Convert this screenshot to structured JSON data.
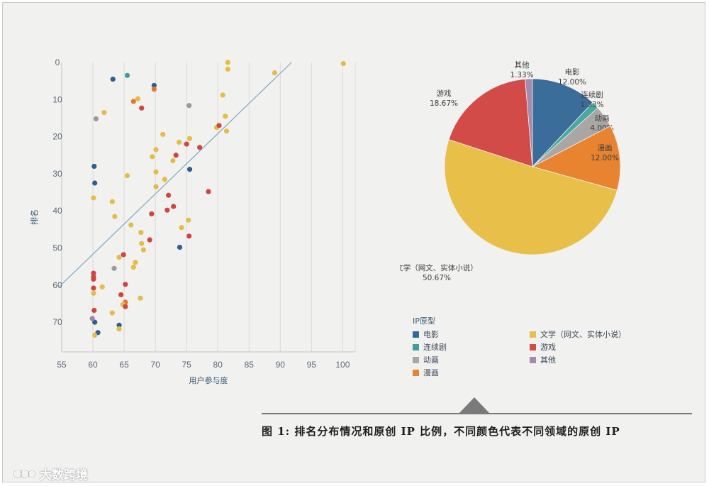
{
  "chart_data": [
    {
      "type": "scatter",
      "xlabel": "用户参与度",
      "ylabel": "排名",
      "xlim": [
        55,
        102
      ],
      "ylim": [
        0,
        78
      ],
      "y_inverted": true,
      "x_ticks": [
        55,
        60,
        65,
        70,
        75,
        80,
        85,
        90,
        95,
        100
      ],
      "y_ticks": [
        0,
        10,
        20,
        30,
        40,
        50,
        60,
        70
      ],
      "grid": true,
      "trendline": {
        "x": [
          54.5,
          91.8
        ],
        "y": [
          60.6,
          0
        ]
      },
      "series": [
        {
          "name": "电影",
          "color": "#2f5f8e",
          "points": [
            [
              63.2,
              4.5
            ],
            [
              69.8,
              6.2
            ],
            [
              60.2,
              28
            ],
            [
              60.3,
              32.5
            ],
            [
              75.5,
              28.8
            ],
            [
              73.9,
              49.8
            ],
            [
              60.3,
              70
            ],
            [
              60.8,
              72.8
            ],
            [
              64.2,
              70.8
            ]
          ]
        },
        {
          "name": "连续剧",
          "color": "#3aa29a",
          "points": [
            [
              65.5,
              3.5
            ]
          ]
        },
        {
          "name": "动画",
          "color": "#9c9a98",
          "points": [
            [
              60.5,
              15.2
            ],
            [
              75.4,
              11.6
            ],
            [
              63.4,
              55.5
            ]
          ]
        },
        {
          "name": "漫画",
          "color": "#e4782b",
          "points": [
            [
              66.5,
              10.5
            ],
            [
              69.8,
              7.2
            ],
            [
              65.2,
              64.6
            ]
          ]
        },
        {
          "name": "文学（网文、实体小说）",
          "color": "#e5bd45",
          "points": [
            [
              61.8,
              13.5
            ],
            [
              67.2,
              9.8
            ],
            [
              71.2,
              19.4
            ],
            [
              75.5,
              20.5
            ],
            [
              69.5,
              25.4
            ],
            [
              70.1,
              23.5
            ],
            [
              73.8,
              21.5
            ],
            [
              72.8,
              26.5
            ],
            [
              65.5,
              30.5
            ],
            [
              70.1,
              29.5
            ],
            [
              71.5,
              31.5
            ],
            [
              70.1,
              33.5
            ],
            [
              60.1,
              36.5
            ],
            [
              63.1,
              37.5
            ],
            [
              63.5,
              41.5
            ],
            [
              66.1,
              43.8
            ],
            [
              67.7,
              45.8
            ],
            [
              67.8,
              48.8
            ],
            [
              68.1,
              50.5
            ],
            [
              74.2,
              44.5
            ],
            [
              75.3,
              42.5
            ],
            [
              61.5,
              60.5
            ],
            [
              60.1,
              62.2
            ],
            [
              66.8,
              53.9
            ],
            [
              66.5,
              55.2
            ],
            [
              64.2,
              52.5
            ],
            [
              64.8,
              65.2
            ],
            [
              67.6,
              63.5
            ],
            [
              60.3,
              73.5
            ],
            [
              64.2,
              71.8
            ],
            [
              63.1,
              67.5
            ],
            [
              79.8,
              17.5
            ],
            [
              81.2,
              14.5
            ],
            [
              81.4,
              18.5
            ],
            [
              80.8,
              8.8
            ],
            [
              81.6,
              0
            ],
            [
              81.6,
              1.8
            ],
            [
              89.1,
              2.8
            ],
            [
              100.1,
              0.3
            ]
          ]
        },
        {
          "name": "游戏",
          "color": "#d04540",
          "points": [
            [
              67.8,
              12.3
            ],
            [
              75.0,
              22.0
            ],
            [
              77.1,
              22.9
            ],
            [
              73.3,
              25
            ],
            [
              80.2,
              17
            ],
            [
              78.5,
              34.8
            ],
            [
              72.1,
              35.8
            ],
            [
              72.9,
              38.8
            ],
            [
              71.9,
              39.8
            ],
            [
              69.4,
              40.8
            ],
            [
              75.4,
              46.8
            ],
            [
              69.1,
              47.8
            ],
            [
              64.9,
              51.8
            ],
            [
              60.1,
              56.8
            ],
            [
              60.1,
              58.4
            ],
            [
              60.1,
              57.8
            ],
            [
              64.5,
              62.6
            ],
            [
              65.2,
              59.8
            ],
            [
              65.2,
              65.8
            ],
            [
              60.1,
              60.8
            ],
            [
              60.2,
              66.8
            ]
          ]
        },
        {
          "name": "其他",
          "color": "#9d85a8",
          "points": [
            [
              59.9,
              69
            ]
          ]
        }
      ]
    },
    {
      "type": "pie",
      "legend_title": "IP原型",
      "slices": [
        {
          "name": "电影",
          "value": 12.0,
          "color": "#3b6d9b",
          "label": "电影",
          "pct": "12.00%"
        },
        {
          "name": "连续剧",
          "value": 1.33,
          "color": "#4ba89e",
          "label": "连续剧",
          "pct": "1.33%"
        },
        {
          "name": "动画",
          "value": 4.0,
          "color": "#a9a6a4",
          "label": "动画",
          "pct": "4.00%"
        },
        {
          "name": "漫画",
          "value": 12.0,
          "color": "#e8832f",
          "label": "漫画",
          "pct": "12.00%"
        },
        {
          "name": "文学（网文、实体小说）",
          "value": 50.67,
          "color": "#e7bf49",
          "label": "文学（网文、实体小说）",
          "pct": "50.67%"
        },
        {
          "name": "游戏",
          "value": 18.67,
          "color": "#d24b48",
          "label": "游戏",
          "pct": "18.67%"
        },
        {
          "name": "其他",
          "value": 1.33,
          "color": "#a58aab",
          "label": "其他",
          "pct": "1.33%"
        }
      ]
    }
  ],
  "legend": {
    "title": "IP原型",
    "items": [
      {
        "label": "电影",
        "color": "#2f6a9e"
      },
      {
        "label": "文学（网文、实体小说）",
        "color": "#e7bf49"
      },
      {
        "label": "连续剧",
        "color": "#3aa29a"
      },
      {
        "label": "游戏",
        "color": "#d24b48"
      },
      {
        "label": "动画",
        "color": "#a9a6a4"
      },
      {
        "label": "其他",
        "color": "#a58aab"
      },
      {
        "label": "漫画",
        "color": "#e8832f"
      }
    ]
  },
  "caption": "图 1: 排名分布情况和原创 IP 比例，不同颜色代表不同领域的原创 IP",
  "watermark": "大数跨境"
}
